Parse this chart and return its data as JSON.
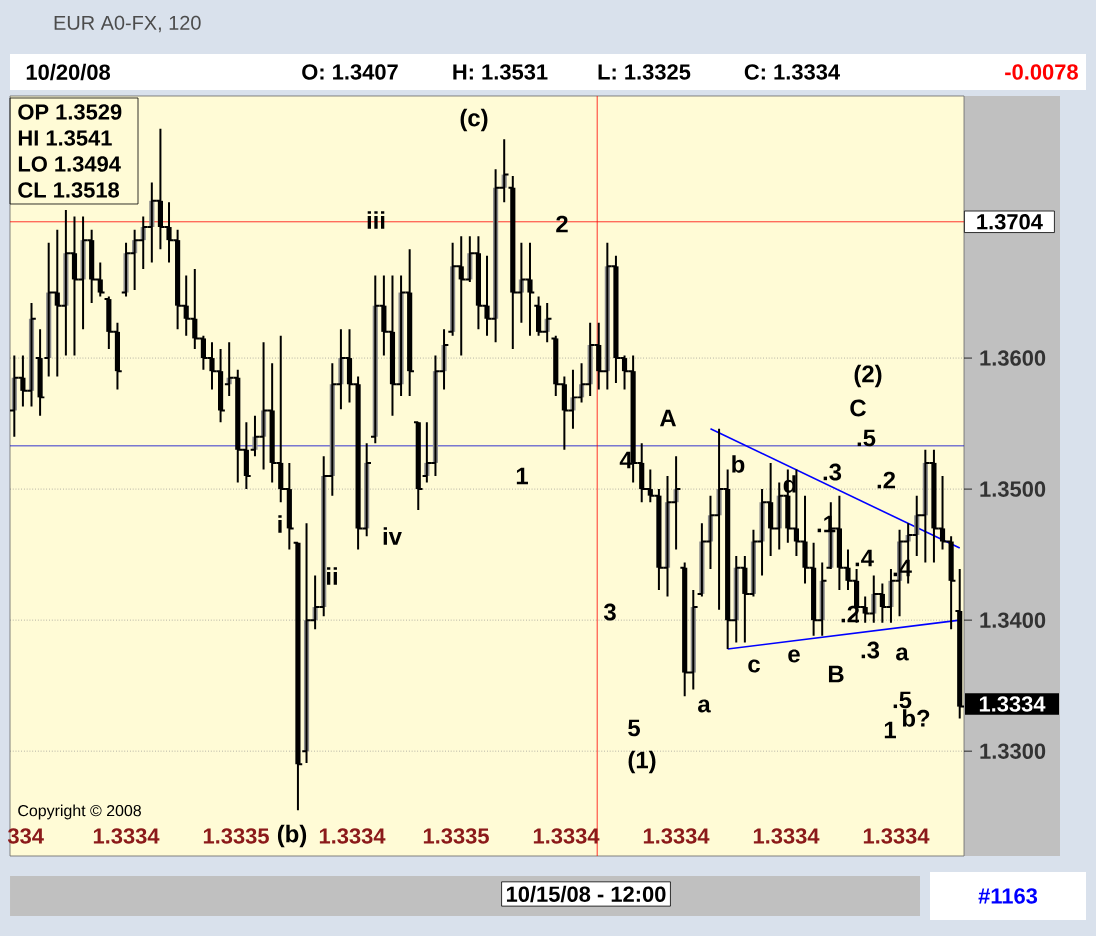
{
  "chart_data": {
    "type": "candlestick",
    "title": "EUR A0-FX, 120",
    "color": "#000000",
    "colors": [
      "#8c8c8c",
      "#000000",
      "#8c8c8c",
      "#000000",
      "#8c8c8c",
      "#000000",
      "#8c8c8c",
      "#000000",
      "#8c8c8c",
      "#000000",
      "#000000",
      "#000000",
      "#000000",
      "#8c8c8c",
      "#8c8c8c",
      "#8c8c8c",
      "#8c8c8c",
      "#000000",
      "#000000",
      "#000000",
      "#000000",
      "#000000",
      "#000000",
      "#000000",
      "#000000",
      "#8c8c8c",
      "#000000",
      "#000000",
      "#8c8c8c",
      "#8c8c8c",
      "#000000",
      "#000000",
      "#000000",
      "#000000",
      "#8c8c8c",
      "#8c8c8c",
      "#8c8c8c",
      "#8c8c8c",
      "#8c8c8c",
      "#000000",
      "#000000",
      "#8c8c8c",
      "#8c8c8c",
      "#000000",
      "#000000",
      "#8c8c8c",
      "#000000",
      "#000000",
      "#8c8c8c",
      "#8c8c8c",
      "#8c8c8c",
      "#8c8c8c",
      "#000000",
      "#8c8c8c",
      "#000000",
      "#000000",
      "#8c8c8c",
      "#8c8c8c",
      "#000000",
      "#8c8c8c",
      "#000000",
      "#000000",
      "#8c8c8c",
      "#000000",
      "#000000",
      "#8c8c8c",
      "#8c8c8c",
      "#8c8c8c",
      "#000000",
      "#8c8c8c",
      "#000000",
      "#000000",
      "#000000",
      "#000000",
      "#000000",
      "#000000",
      "#8c8c8c",
      "#8c8c8c",
      "#000000",
      "#8c8c8c",
      "#8c8c8c",
      "#8c8c8c",
      "#8c8c8c",
      "#000000",
      "#8c8c8c",
      "#000000",
      "#8c8c8c",
      "#8c8c8c",
      "#000000",
      "#8c8c8c",
      "#000000",
      "#000000",
      "#000000",
      "#000000",
      "#8c8c8c",
      "#8c8c8c",
      "#000000",
      "#000000",
      "#000000",
      "#000000",
      "#8c8c8c",
      "#000000",
      "#8c8c8c",
      "#8c8c8c",
      "#8c8c8c",
      "#8c8c8c",
      "#8c8c8c",
      "#000000",
      "#000000",
      "#000000",
      "#000000"
    ],
    "categories": [
      null,
      null,
      null,
      null,
      null,
      null,
      null,
      null,
      null,
      null,
      null,
      null,
      null,
      null,
      null,
      null,
      null,
      null,
      null,
      null,
      null,
      null,
      null,
      null,
      null,
      null,
      null,
      null,
      null,
      null,
      null,
      null,
      null,
      null,
      null,
      null,
      null,
      null,
      null,
      null,
      null,
      null,
      null,
      null,
      null,
      null,
      null,
      null,
      null,
      null,
      null,
      null,
      null,
      null,
      null,
      null,
      null,
      null,
      null,
      null,
      null,
      null,
      null,
      null,
      null,
      null,
      null,
      null,
      null,
      null,
      null,
      null,
      null,
      null,
      null,
      null,
      null,
      null,
      null,
      null,
      null,
      null,
      null,
      null,
      null,
      null,
      null,
      null,
      null,
      null,
      null,
      null,
      null,
      null,
      null,
      null,
      null,
      null,
      null,
      null,
      null,
      null,
      null,
      null,
      null,
      null,
      null,
      null,
      null,
      null,
      null
    ],
    "ohlc": [
      [
        1.356,
        1.3602,
        1.354,
        1.3585
      ],
      [
        1.3585,
        1.3602,
        1.3563,
        1.3575
      ],
      [
        1.3575,
        1.3642,
        1.3563,
        1.363
      ],
      [
        1.36,
        1.3622,
        1.3556,
        1.357
      ],
      [
        1.36,
        1.3688,
        1.3586,
        1.365
      ],
      [
        1.365,
        1.3698,
        1.3586,
        1.364
      ],
      [
        1.364,
        1.3713,
        1.3602,
        1.368
      ],
      [
        1.368,
        1.3708,
        1.3602,
        1.366
      ],
      [
        1.366,
        1.3708,
        1.3622,
        1.369
      ],
      [
        1.369,
        1.3698,
        1.3642,
        1.366
      ],
      [
        1.366,
        1.3673,
        1.3647,
        1.365
      ],
      [
        1.3645,
        1.3647,
        1.3607,
        1.362
      ],
      [
        1.362,
        1.3627,
        1.3576,
        1.359
      ],
      [
        1.365,
        1.3688,
        1.3647,
        1.368
      ],
      [
        1.368,
        1.3698,
        1.3652,
        1.369
      ],
      [
        1.369,
        1.3708,
        1.3668,
        1.37
      ],
      [
        1.37,
        1.3734,
        1.3673,
        1.372
      ],
      [
        1.372,
        1.3775,
        1.3683,
        1.37
      ],
      [
        1.37,
        1.3719,
        1.3673,
        1.369
      ],
      [
        1.369,
        1.3698,
        1.3622,
        1.364
      ],
      [
        1.364,
        1.3663,
        1.3617,
        1.363
      ],
      [
        1.363,
        1.3668,
        1.3607,
        1.3615
      ],
      [
        1.3615,
        1.3617,
        1.3591,
        1.36
      ],
      [
        1.36,
        1.3612,
        1.3576,
        1.359
      ],
      [
        1.359,
        1.3607,
        1.3551,
        1.356
      ],
      [
        1.358,
        1.3612,
        1.3571,
        1.3585
      ],
      [
        1.3585,
        1.3591,
        1.3505,
        1.353
      ],
      [
        1.353,
        1.3551,
        1.35,
        1.351
      ],
      [
        1.353,
        1.3556,
        1.3525,
        1.354
      ],
      [
        1.354,
        1.3612,
        1.3515,
        1.356
      ],
      [
        1.356,
        1.3596,
        1.3505,
        1.352
      ],
      [
        1.352,
        1.3617,
        1.349,
        1.35
      ],
      [
        1.35,
        1.352,
        1.3454,
        1.347
      ],
      [
        1.3459,
        1.3459,
        1.3255,
        1.329
      ],
      [
        1.33,
        1.3474,
        1.3291,
        1.34
      ],
      [
        1.34,
        1.3434,
        1.3393,
        1.341
      ],
      [
        1.341,
        1.3525,
        1.3403,
        1.351
      ],
      [
        1.351,
        1.3596,
        1.3495,
        1.358
      ],
      [
        1.358,
        1.3622,
        1.3561,
        1.36
      ],
      [
        1.36,
        1.3622,
        1.3566,
        1.358
      ],
      [
        1.358,
        1.3586,
        1.3454,
        1.347
      ],
      [
        1.347,
        1.3535,
        1.3464,
        1.352
      ],
      [
        1.354,
        1.3663,
        1.3535,
        1.364
      ],
      [
        1.364,
        1.3663,
        1.3602,
        1.362
      ],
      [
        1.362,
        1.3663,
        1.3556,
        1.358
      ],
      [
        1.358,
        1.3663,
        1.3571,
        1.365
      ],
      [
        1.365,
        1.3683,
        1.3571,
        1.359
      ],
      [
        1.3551,
        1.3551,
        1.3484,
        1.35
      ],
      [
        1.351,
        1.3551,
        1.3505,
        1.352
      ],
      [
        1.352,
        1.3602,
        1.351,
        1.359
      ],
      [
        1.359,
        1.3622,
        1.3576,
        1.361
      ],
      [
        1.362,
        1.3688,
        1.3617,
        1.367
      ],
      [
        1.367,
        1.3693,
        1.3602,
        1.366
      ],
      [
        1.366,
        1.3693,
        1.3658,
        1.368
      ],
      [
        1.368,
        1.3693,
        1.3622,
        1.364
      ],
      [
        1.364,
        1.3678,
        1.3617,
        1.363
      ],
      [
        1.363,
        1.3744,
        1.3612,
        1.373
      ],
      [
        1.373,
        1.3767,
        1.3719,
        1.374
      ],
      [
        1.373,
        1.3739,
        1.3607,
        1.365
      ],
      [
        1.365,
        1.3688,
        1.3627,
        1.366
      ],
      [
        1.366,
        1.3688,
        1.3617,
        1.365
      ],
      [
        1.364,
        1.3647,
        1.3617,
        1.362
      ],
      [
        1.362,
        1.3642,
        1.3612,
        1.363
      ],
      [
        1.3615,
        1.3617,
        1.3571,
        1.358
      ],
      [
        1.358,
        1.3586,
        1.353,
        1.356
      ],
      [
        1.356,
        1.3591,
        1.3546,
        1.357
      ],
      [
        1.357,
        1.3596,
        1.3566,
        1.358
      ],
      [
        1.358,
        1.3627,
        1.3571,
        1.361
      ],
      [
        1.361,
        1.3627,
        1.3576,
        1.359
      ],
      [
        1.359,
        1.3688,
        1.3576,
        1.367
      ],
      [
        1.367,
        1.3678,
        1.3581,
        1.36
      ],
      [
        1.36,
        1.3602,
        1.3576,
        1.359
      ],
      [
        1.359,
        1.3602,
        1.3505,
        1.352
      ],
      [
        1.352,
        1.3535,
        1.349,
        1.35
      ],
      [
        1.35,
        1.3515,
        1.349,
        1.3495
      ],
      [
        1.3495,
        1.35,
        1.3423,
        1.344
      ],
      [
        1.344,
        1.351,
        1.3418,
        1.349
      ],
      [
        1.349,
        1.3525,
        1.3454,
        1.35
      ],
      [
        1.344,
        1.3444,
        1.3342,
        1.336
      ],
      [
        1.336,
        1.3423,
        1.3347,
        1.341
      ],
      [
        1.342,
        1.3474,
        1.3418,
        1.346
      ],
      [
        1.346,
        1.3495,
        1.3439,
        1.348
      ],
      [
        1.348,
        1.3546,
        1.3408,
        1.35
      ],
      [
        1.35,
        1.3515,
        1.3378,
        1.34
      ],
      [
        1.34,
        1.3449,
        1.3383,
        1.344
      ],
      [
        1.344,
        1.3449,
        1.3383,
        1.342
      ],
      [
        1.342,
        1.3469,
        1.3418,
        1.346
      ],
      [
        1.346,
        1.35,
        1.3434,
        1.349
      ],
      [
        1.349,
        1.352,
        1.3449,
        1.347
      ],
      [
        1.347,
        1.3505,
        1.3454,
        1.3495
      ],
      [
        1.3495,
        1.3515,
        1.3459,
        1.347
      ],
      [
        1.347,
        1.3515,
        1.3449,
        1.346
      ],
      [
        1.346,
        1.3495,
        1.3428,
        1.344
      ],
      [
        1.344,
        1.3459,
        1.3388,
        1.34
      ],
      [
        1.34,
        1.3444,
        1.3388,
        1.343
      ],
      [
        1.344,
        1.349,
        1.3439,
        1.347
      ],
      [
        1.347,
        1.3495,
        1.3423,
        1.344
      ],
      [
        1.344,
        1.3454,
        1.3423,
        1.343
      ],
      [
        1.343,
        1.3439,
        1.3398,
        1.341
      ],
      [
        1.341,
        1.3418,
        1.3398,
        1.3405
      ],
      [
        1.3405,
        1.3434,
        1.3398,
        1.342
      ],
      [
        1.342,
        1.3428,
        1.3398,
        1.341
      ],
      [
        1.341,
        1.3439,
        1.3398,
        1.343
      ],
      [
        1.343,
        1.3469,
        1.3403,
        1.346
      ],
      [
        1.346,
        1.3474,
        1.3428,
        1.3465
      ],
      [
        1.3465,
        1.3495,
        1.3449,
        1.348
      ],
      [
        1.348,
        1.353,
        1.3444,
        1.352
      ],
      [
        1.352,
        1.353,
        1.3444,
        1.347
      ],
      [
        1.347,
        1.351,
        1.3454,
        1.346
      ],
      [
        1.346,
        1.3464,
        1.3393,
        1.343
      ],
      [
        1.3407,
        1.3439,
        1.3325,
        1.3334
      ]
    ],
    "series": [
      {
        "type": "line",
        "color": "#0000ff",
        "values": [
          null,
          null,
          null,
          null,
          null,
          null,
          null,
          null,
          null,
          null,
          null,
          null,
          null,
          null,
          null,
          null,
          null,
          null,
          null,
          null,
          null,
          null,
          null,
          null,
          null,
          null,
          null,
          null,
          null,
          null,
          null,
          null,
          null,
          null,
          null,
          null,
          null,
          null,
          null,
          null,
          null,
          null,
          null,
          null,
          null,
          null,
          null,
          null,
          null,
          null,
          null,
          null,
          null,
          null,
          null,
          null,
          null,
          null,
          null,
          null,
          null,
          null,
          null,
          null,
          null,
          null,
          null,
          null,
          null,
          null,
          null,
          null,
          null,
          null,
          null,
          null,
          null,
          null,
          null,
          null,
          null,
          1.3546,
          null,
          null,
          null,
          null,
          null,
          null,
          null,
          null,
          null,
          null,
          null,
          null,
          null,
          null,
          null,
          null,
          null,
          null,
          null,
          null,
          null,
          null,
          null,
          null,
          null,
          null,
          null,
          null,
          1.3455
        ]
      },
      {
        "type": "line",
        "color": "#0000ff",
        "values": [
          null,
          null,
          null,
          null,
          null,
          null,
          null,
          null,
          null,
          null,
          null,
          null,
          null,
          null,
          null,
          null,
          null,
          null,
          null,
          null,
          null,
          null,
          null,
          null,
          null,
          null,
          null,
          null,
          null,
          null,
          null,
          null,
          null,
          null,
          null,
          null,
          null,
          null,
          null,
          null,
          null,
          null,
          null,
          null,
          null,
          null,
          null,
          null,
          null,
          null,
          null,
          null,
          null,
          null,
          null,
          null,
          null,
          null,
          null,
          null,
          null,
          null,
          null,
          null,
          null,
          null,
          null,
          null,
          null,
          null,
          null,
          null,
          null,
          null,
          null,
          null,
          null,
          null,
          null,
          null,
          null,
          null,
          null,
          1.3378,
          null,
          null,
          null,
          null,
          null,
          null,
          null,
          null,
          null,
          null,
          null,
          null,
          null,
          null,
          null,
          null,
          null,
          null,
          null,
          null,
          null,
          null,
          null,
          null,
          null,
          null,
          1.34
        ]
      }
    ],
    "ylim": [
      1.322,
      1.38
    ],
    "yticks": [
      {
        "value": 1.33,
        "label": "1.3300"
      },
      {
        "value": 1.34,
        "label": "1.3400"
      },
      {
        "value": 1.35,
        "label": "1.3500"
      },
      {
        "value": 1.36,
        "label": "1.3600"
      }
    ],
    "grid": "y",
    "tick_labels": "y",
    "ref_lines": [
      {
        "axis": "y",
        "value": 1.3704,
        "label": "1.3704",
        "color": "#ff0000"
      },
      {
        "axis": "y",
        "value": 1.3533,
        "color": "#0000cc"
      }
    ],
    "annotations": [
      "10/20/08",
      "O: 1.3407",
      "H: 1.3531",
      "L: 1.3325",
      "C: 1.3334",
      "-0.0078",
      "OP 1.3529",
      "HI  1.3541",
      "LO 1.3494",
      "CL 1.3518",
      "(c)",
      "iii",
      "2",
      "i",
      "ii",
      "iv",
      "1",
      "4",
      "3",
      "5",
      "(1)",
      "A",
      "b",
      "d",
      "a",
      "c",
      "e",
      "B",
      "(2)",
      "C",
      ".5",
      ".2",
      ".3",
      ".1",
      ".4",
      ".2",
      ".4",
      ".3",
      "a",
      ".5",
      "b?",
      "1",
      "(b)",
      "Copyright © 2008",
      "334",
      "1.3334",
      "1.3335",
      "1.3334",
      "1.3335",
      "1.3334",
      "1.3334",
      "1.3334",
      "1.3334",
      "1.3334",
      "10/15/08 - 12:00",
      "#1163"
    ]
  }
}
